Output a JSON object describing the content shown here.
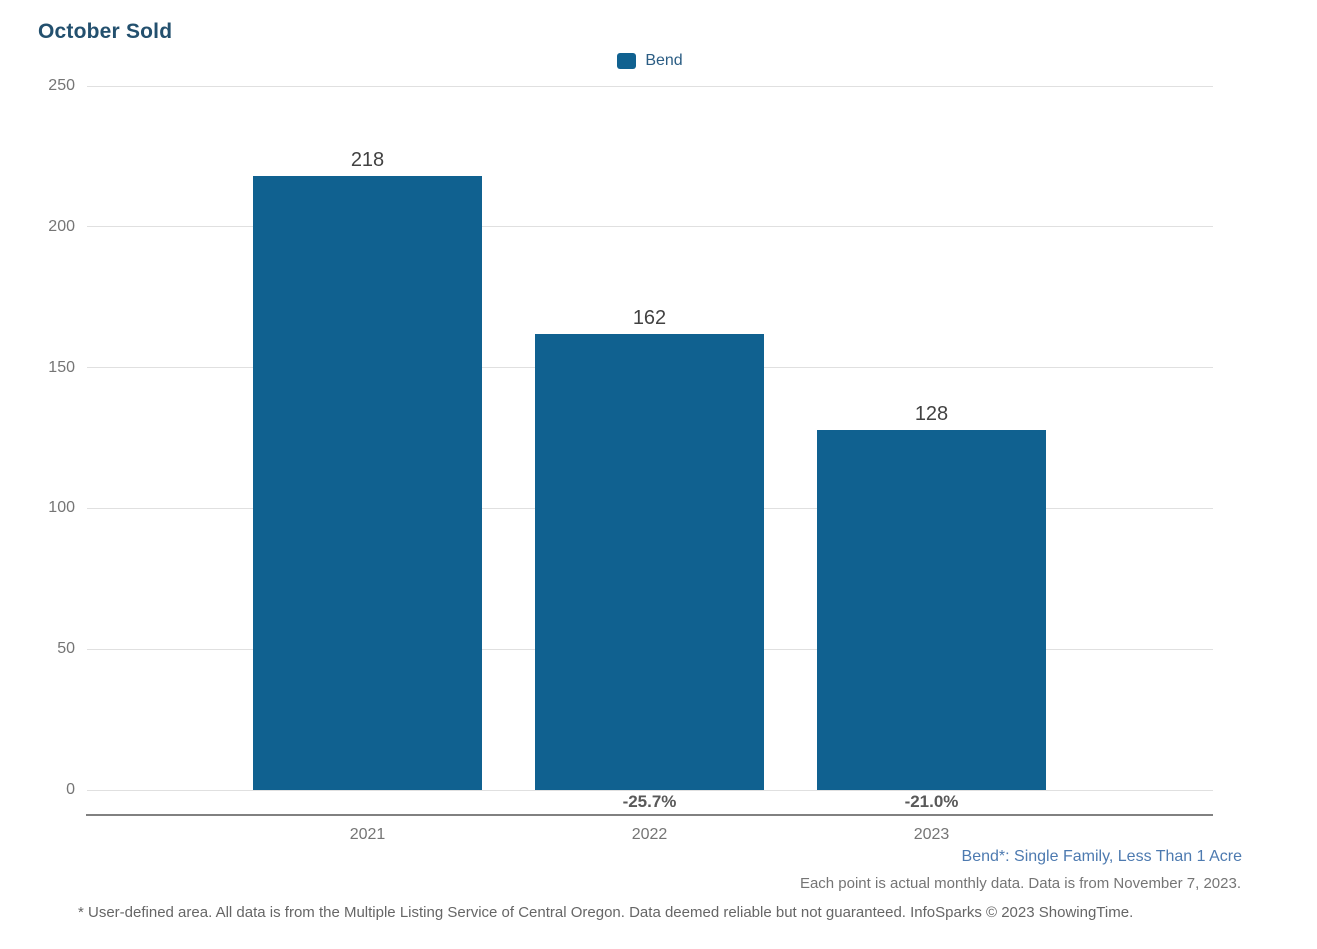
{
  "title": "October Sold",
  "legend": {
    "label": "Bend"
  },
  "chart_data": {
    "type": "bar",
    "title": "October Sold",
    "categories": [
      "2021",
      "2022",
      "2023"
    ],
    "series": [
      {
        "name": "Bend",
        "values": [
          218,
          162,
          128
        ]
      }
    ],
    "value_labels": [
      "218",
      "162",
      "128"
    ],
    "pct_change_labels": [
      "",
      "-25.7%",
      "-21.0%"
    ],
    "xlabel": "",
    "ylabel": "",
    "ylim": [
      0,
      250
    ],
    "yticks": [
      0,
      50,
      100,
      150,
      200,
      250
    ],
    "grid": true,
    "legend_position": "top-center",
    "bar_color": "#106190"
  },
  "notes": {
    "series_definition": "Bend*: Single Family, Less Than 1 Acre",
    "data_note": "Each point is actual monthly data. Data is from November 7, 2023.",
    "disclaimer": "* User-defined area. All data is from the Multiple Listing Service of Central Oregon. Data deemed reliable but not guaranteed. InfoSparks © 2023 ShowingTime."
  },
  "colors": {
    "bar": "#106190",
    "title": "#23506e",
    "legend_text": "#2b5d84",
    "subtitle_blue": "#4d7ab0",
    "axis_text": "#757575",
    "value_label": "#424242",
    "pct_label": "#595959",
    "gridline": "#e0e0e0",
    "axis_line": "#818181",
    "footer_text": "#666666"
  }
}
